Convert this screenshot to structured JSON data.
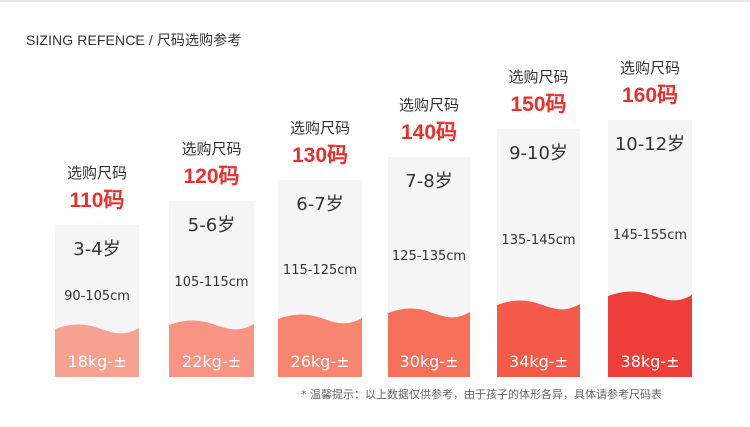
{
  "heading": "SIZING REFENCE / 尺码选购参考",
  "label_text": "选购尺码",
  "sizes": [
    {
      "code": "110码",
      "age": "3-4岁",
      "height": "90-105cm",
      "weight": "18kg-±",
      "fill_color": "#f7a191"
    },
    {
      "code": "120码",
      "age": "5-6岁",
      "height": "105-115cm",
      "weight": "22kg-±",
      "fill_color": "#f79483"
    },
    {
      "code": "130码",
      "age": "6-7岁",
      "height": "115-125cm",
      "weight": "26kg-±",
      "fill_color": "#f7856f"
    },
    {
      "code": "140码",
      "age": "7-8岁",
      "height": "125-135cm",
      "weight": "30kg-±",
      "fill_color": "#f6705b"
    },
    {
      "code": "150码",
      "age": "9-10岁",
      "height": "135-145cm",
      "weight": "34kg-±",
      "fill_color": "#f35a49"
    },
    {
      "code": "160码",
      "age": "10-12岁",
      "height": "145-155cm",
      "weight": "38kg-±",
      "fill_color": "#ee3e39"
    }
  ],
  "note": "* 温馨提示：以上数据仅供参考，由于孩子的体形各异，具体请参考尺码表"
}
